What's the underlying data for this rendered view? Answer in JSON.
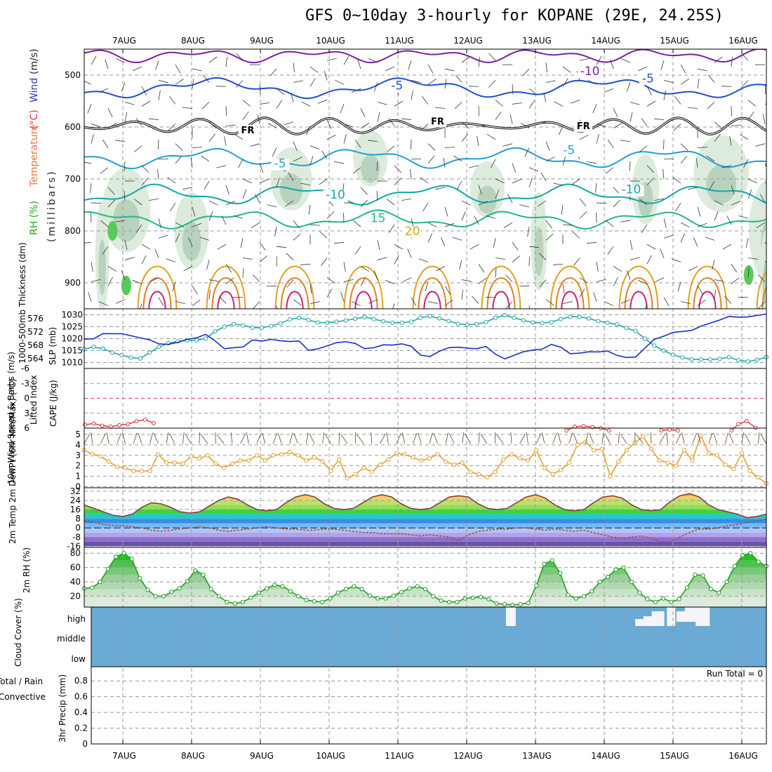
{
  "title": "GFS 0~10day 3-hourly for KOPANE (29E, 24.25S)",
  "dates": [
    "7AUG",
    "8AUG",
    "9AUG",
    "10AUG",
    "11AUG",
    "12AUG",
    "13AUG",
    "14AUG",
    "15AUG",
    "16AUG"
  ],
  "chart_data": [
    {
      "type": "contour",
      "panel": "upper-air",
      "ylabel_parts": [
        {
          "text": "RH (%)",
          "color": "#22aa22"
        },
        {
          "text": "Temperature",
          "color": "#ee7744"
        },
        {
          "text": "(°C)",
          "color": "#ee3333"
        },
        {
          "text": "Wind",
          "color": "#3333cc"
        },
        {
          "text": "(m/s)",
          "color": "#222222"
        }
      ],
      "ylabel2": "(millibars)",
      "yticks": [
        500,
        600,
        700,
        800,
        900
      ],
      "ylim": [
        450,
        950
      ],
      "contour_labels": [
        {
          "text": "-10",
          "color": "#7a1fa8",
          "day": 6.65,
          "p": 500
        },
        {
          "text": "-5",
          "color": "#1f4fd0",
          "day": 3.9,
          "p": 528
        },
        {
          "text": "-5",
          "color": "#1f4fd0",
          "day": 7.55,
          "p": 514
        },
        {
          "text": "FR",
          "color": "#000000",
          "day": 1.72,
          "p": 612
        },
        {
          "text": "FR",
          "color": "#000000",
          "day": 4.48,
          "p": 595
        },
        {
          "text": "FR",
          "color": "#000000",
          "day": 6.6,
          "p": 604
        },
        {
          "text": "-5",
          "color": "#1f9fd8",
          "day": 2.2,
          "p": 678
        },
        {
          "text": "-5",
          "color": "#1f9fd8",
          "day": 6.4,
          "p": 652
        },
        {
          "text": "-10",
          "color": "#10a8a8",
          "day": 2.95,
          "p": 738
        },
        {
          "text": "-10",
          "color": "#10a8a8",
          "day": 7.25,
          "p": 728
        },
        {
          "text": "15",
          "color": "#20b888",
          "day": 3.6,
          "p": 783
        },
        {
          "text": "20",
          "color": "#e0a020",
          "day": 4.1,
          "p": 808
        }
      ]
    },
    {
      "type": "line",
      "panel": "thickness-slp",
      "ylabel_left": "1000-500mb Thickness (dm)",
      "ylabel_right": "SLP (mb)",
      "yticks_left": [
        564,
        568,
        572,
        576
      ],
      "yticks_right": [
        1010,
        1015,
        1020,
        1025,
        1030
      ],
      "thickness": [
        566.8,
        567.5,
        567.0,
        565.8,
        565.0,
        564.3,
        564.0,
        565.8,
        567.5,
        568.6,
        569.2,
        569.5,
        569.5,
        570.0,
        572.2,
        573.6,
        574.4,
        574.0,
        573.3,
        573.3,
        573.8,
        574.6,
        575.8,
        576.3,
        575.6,
        574.9,
        574.8,
        575.1,
        575.5,
        576.0,
        576.5,
        575.9,
        575.2,
        574.8,
        574.8,
        575.1,
        576.3,
        576.8,
        576.1,
        575.3,
        574.5,
        574.2,
        574.4,
        575.0,
        576.3,
        577.1,
        576.3,
        575.5,
        574.9,
        574.7,
        575.0,
        575.9,
        576.6,
        576.6,
        576.1,
        575.3,
        574.8,
        574.3,
        573.2,
        572.3,
        570.0,
        567.9,
        566.4,
        565.1,
        564.3,
        563.7,
        563.7,
        563.7,
        563.9,
        564.4,
        563.5,
        563.1,
        563.6,
        564.4
      ],
      "slp": [
        1019.8,
        1019.9,
        1022.1,
        1022.1,
        1022.1,
        1021.2,
        1020.3,
        1019.5,
        1017.8,
        1017.6,
        1018.4,
        1019.7,
        1020.3,
        1021.8,
        1019.1,
        1015.8,
        1016.2,
        1016.5,
        1019.4,
        1019.0,
        1019.7,
        1019.1,
        1018.8,
        1019.0,
        1015.1,
        1015.7,
        1017.0,
        1018.3,
        1018.7,
        1018.0,
        1015.8,
        1016.2,
        1017.4,
        1017.3,
        1017.8,
        1016.8,
        1013.1,
        1012.5,
        1014.7,
        1016.2,
        1016.4,
        1016.0,
        1015.8,
        1016.7,
        1013.5,
        1011.5,
        1013.0,
        1014.5,
        1015.2,
        1015.6,
        1017.6,
        1016.4,
        1013.7,
        1013.9,
        1014.5,
        1014.4,
        1014.8,
        1013.0,
        1012.1,
        1012.3,
        1016.0,
        1019.7,
        1021.0,
        1022.6,
        1023.0,
        1023.4,
        1025.2,
        1026.5,
        1027.8,
        1029.3,
        1029.0,
        1029.1,
        1029.7,
        1030.3
      ],
      "colors": {
        "thickness": "#22aaaa",
        "slp": "#1530cc"
      }
    },
    {
      "type": "line",
      "panel": "stability",
      "ylabel_left": "Lifted Index",
      "ylabel_right": "CAPE (J/kg)",
      "yticks": [
        -6,
        -3,
        0,
        3,
        6
      ],
      "li_days": [
        0.0,
        0.125,
        0.25,
        0.375,
        0.5,
        0.625,
        0.75,
        0.875,
        1.0
      ],
      "li": [
        5.3,
        5.1,
        5.5,
        5.7,
        5.4,
        5.2,
        4.6,
        4.3,
        5.0
      ],
      "li_segments": [
        {
          "days": [
            7.0,
            7.12,
            7.25,
            7.38,
            7.5,
            7.62
          ],
          "values": [
            6.5,
            5.7,
            5.6,
            5.8,
            6.0,
            6.5
          ]
        },
        {
          "days": [
            8.38,
            8.5,
            8.62
          ],
          "values": [
            6.5,
            6.3,
            6.5
          ]
        },
        {
          "days": [
            9.4,
            9.5,
            9.62,
            9.75
          ],
          "values": [
            6.5,
            5.2,
            4.6,
            5.9
          ]
        }
      ],
      "colors": {
        "li": "#e03030"
      }
    },
    {
      "type": "line",
      "panel": "wind10m",
      "ylabel": "10m Wind Speed & Barbs (m/s)",
      "yticks": [
        0,
        1,
        2,
        3,
        4,
        5
      ],
      "speed": [
        3.5,
        3.1,
        2.9,
        2.4,
        1.9,
        1.8,
        1.5,
        1.5,
        1.5,
        3.1,
        2.3,
        2.3,
        2.2,
        2.9,
        2.7,
        3.0,
        2.2,
        1.8,
        2.2,
        2.5,
        2.5,
        3.0,
        2.5,
        3.0,
        3.1,
        3.3,
        3.0,
        2.5,
        2.8,
        2.4,
        1.5,
        2.6,
        0.8,
        1.2,
        1.8,
        1.4,
        2.1,
        2.6,
        3.2,
        3.1,
        2.8,
        2.5,
        2.7,
        3.1,
        2.4,
        2.1,
        2.3,
        1.4,
        1.2,
        0.9,
        1.4,
        2.6,
        3.1,
        2.7,
        2.5,
        3.5,
        1.8,
        1.2,
        1.6,
        2.3,
        4.0,
        4.3,
        3.5,
        3.6,
        1.0,
        2.4,
        3.5,
        4.2,
        4.8,
        3.6,
        2.5,
        2.3,
        2.0,
        3.5,
        2.5,
        4.9,
        3.2,
        3.0,
        2.1,
        1.7,
        3.2,
        1.5,
        0.9,
        0.3
      ],
      "colors": {
        "speed": "#e8a030"
      }
    },
    {
      "type": "area",
      "panel": "temperature2m",
      "ylabel": "2m Temp 2m DewPt (6hr Min/Max) (°C)",
      "yticks": [
        -16,
        -8,
        0,
        8,
        16,
        24,
        32
      ],
      "temp": [
        20,
        17,
        14,
        11,
        10,
        12,
        18,
        22,
        21,
        18,
        14,
        13,
        14,
        19,
        24,
        27,
        25,
        20,
        16,
        15,
        16,
        22,
        27,
        29,
        27,
        21,
        17,
        16,
        17,
        22,
        27,
        29,
        27,
        21,
        17,
        16,
        17,
        22,
        27,
        28,
        27,
        21,
        17,
        16,
        17,
        22,
        27,
        29,
        26,
        20,
        16,
        15,
        16,
        22,
        27,
        28,
        26,
        20,
        16,
        15,
        16,
        23,
        28,
        30,
        27,
        20,
        16,
        14,
        12,
        9,
        10,
        12
      ],
      "dewpoint": [
        6,
        5,
        3,
        2,
        2,
        1,
        0,
        -2,
        -3,
        -2,
        -1,
        0,
        1,
        0,
        -2,
        -3,
        -2,
        -1,
        0,
        1,
        0,
        -1,
        -1,
        -2,
        -2,
        -1,
        -1,
        -2,
        -3,
        -4,
        -4,
        -5,
        -5,
        -5,
        -6,
        -7,
        -6,
        -7,
        -8,
        -11,
        -6,
        -3,
        -2,
        -1,
        -1,
        0,
        0,
        -1,
        -2,
        -1,
        -2,
        -3,
        -2,
        -4,
        -6,
        -8,
        -9,
        -8,
        -7,
        -9,
        -12,
        -12,
        -8,
        -4,
        -1,
        -1,
        0,
        2,
        3,
        5,
        6,
        8
      ],
      "colors": {
        "temp": "#804040",
        "dewpoint": "#a05040"
      }
    },
    {
      "type": "area",
      "panel": "rh2m",
      "ylabel": "2m RH (%)",
      "yticks": [
        20,
        40,
        60,
        80
      ],
      "rh": [
        31,
        32,
        40,
        58,
        75,
        80,
        72,
        45,
        29,
        20,
        20,
        26,
        31,
        41,
        56,
        50,
        30,
        20,
        12,
        10,
        12,
        18,
        25,
        31,
        36,
        34,
        27,
        20,
        15,
        13,
        12,
        17,
        25,
        30,
        34,
        30,
        21,
        17,
        17,
        21,
        26,
        31,
        34,
        30,
        20,
        14,
        12,
        12,
        17,
        18,
        19,
        16,
        10,
        9,
        8,
        9,
        11,
        35,
        65,
        70,
        52,
        22,
        17,
        20,
        27,
        40,
        47,
        57,
        60,
        40,
        25,
        16,
        12,
        17,
        12,
        16,
        32,
        50,
        49,
        30,
        25,
        40,
        62,
        77,
        80,
        68,
        62
      ],
      "colors": {
        "rh": "#20a020"
      }
    },
    {
      "type": "area",
      "panel": "cloud",
      "ylabel": "Cloud Cover (%)",
      "yticks": [
        "high",
        "middle",
        "low"
      ],
      "colors": {
        "cover": "#6aaad4",
        "clear": "#f4f4fa"
      }
    },
    {
      "type": "bar",
      "panel": "precip",
      "ylabel_parts": [
        {
          "text": "Total / Rain",
          "color": "#22aa22"
        },
        {
          "text": "Convective",
          "color": "#e03030"
        },
        {
          "text": "3hr Precip (mm)",
          "color": "#222222"
        }
      ],
      "yticks": [
        0,
        0.2,
        0.4,
        0.6,
        0.8
      ],
      "run_total_label": "Run Total = 0",
      "values": []
    }
  ]
}
